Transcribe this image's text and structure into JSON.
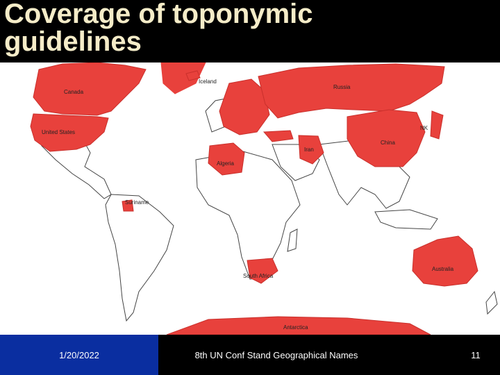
{
  "slide": {
    "title_line1": "Coverage of toponymic",
    "title_line2": "guidelines"
  },
  "map": {
    "highlight_color": "#e8413c",
    "outline_color": "#444444",
    "labels": {
      "canada": "Canada",
      "united_states": "United States",
      "iceland": "Iceland",
      "russia": "Russia",
      "china": "China",
      "iran": "Iran",
      "algeria": "Algeria",
      "suriname": "Suriname",
      "south_africa": "South Africa",
      "australia": "Australia",
      "antarctica": "Antarctica",
      "nk": "NK"
    }
  },
  "footer": {
    "date": "1/20/2022",
    "conference": "8th UN Conf Stand Geographical Names",
    "page": "11"
  }
}
